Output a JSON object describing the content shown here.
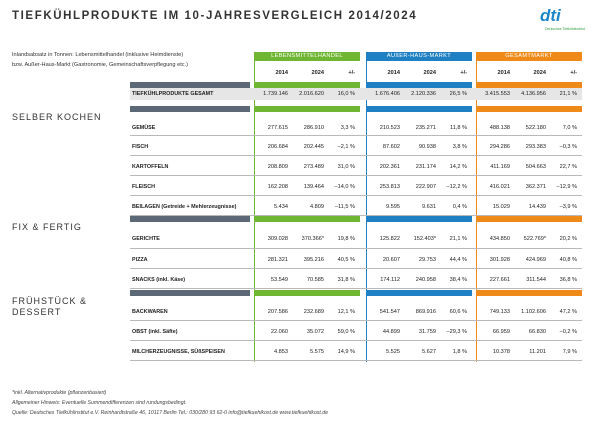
{
  "header": {
    "title": "TIEFKÜHLPRODUKTE IM 10-JAHRESVERGLEICH 2014/2024",
    "logo": "dti",
    "logo_sub": "Deutsches Tiefkühlinstitut"
  },
  "note": [
    "Inlandsabsatz in Tonnen: Lebensmittelhandel (inklusive Heimdienste)",
    "bzw. Außer-Haus-Markt (Gastronomie, Gemeinschaftsverpflegung etc.)"
  ],
  "groups": [
    "LEBENSMITTELHANDEL",
    "AUßER-HAUS-MARKT",
    "GESAMTMARKT"
  ],
  "columns": [
    "2014",
    "2024",
    "+/-"
  ],
  "total": {
    "label": "TIEFKÜHLPRODUKTE GESAMT",
    "values": [
      "1.739.146",
      "2.016.620",
      "16,0 %",
      "1.676.406",
      "2.120.336",
      "26,5 %",
      "3.415.553",
      "4.136.956",
      "21,1 %"
    ]
  },
  "sections": [
    {
      "name": "SELBER KOCHEN",
      "rows": [
        {
          "label": "GEMÜSE",
          "values": [
            "277.615",
            "286.910",
            "3,3 %",
            "210.523",
            "235.271",
            "11,8 %",
            "488.138",
            "522.180",
            "7,0 %"
          ]
        },
        {
          "label": "FISCH",
          "values": [
            "206.684",
            "202.445",
            "–2,1 %",
            "87.602",
            "90.938",
            "3,8 %",
            "294.286",
            "293.383",
            "–0,3 %"
          ]
        },
        {
          "label": "KARTOFFELN",
          "values": [
            "208.809",
            "273.489",
            "31,0 %",
            "202.361",
            "231.174",
            "14,2 %",
            "411.169",
            "504.663",
            "22,7 %"
          ]
        },
        {
          "label": "FLEISCH",
          "values": [
            "162.208",
            "139.464",
            "–14,0 %",
            "253.813",
            "222.907",
            "–12,2 %",
            "416.021",
            "362.371",
            "–12,9 %"
          ]
        },
        {
          "label": "BEILAGEN (Getreide + Mehlerzeugnisse)",
          "values": [
            "5.434",
            "4.809",
            "–11,5 %",
            "9.595",
            "9.631",
            "0,4 %",
            "15.029",
            "14.439",
            "–3,9 %"
          ]
        }
      ]
    },
    {
      "name": "FIX & FERTIG",
      "rows": [
        {
          "label": "GERICHTE",
          "values": [
            "309.028",
            "370.366*",
            "19,8 %",
            "125.822",
            "152.403*",
            "21,1 %",
            "434.850",
            "522.769*",
            "20,2 %"
          ]
        },
        {
          "label": "PIZZA",
          "values": [
            "281.321",
            "395.216",
            "40,5 %",
            "20.607",
            "29.753",
            "44,4 %",
            "301.928",
            "424.969",
            "40,8 %"
          ]
        },
        {
          "label": "SNACKS (inkl. Käse)",
          "values": [
            "53.549",
            "70.585",
            "31,8 %",
            "174.112",
            "240.958",
            "38,4 %",
            "227.661",
            "311.544",
            "36,8 %"
          ]
        }
      ]
    },
    {
      "name": "FRÜHSTÜCK & DESSERT",
      "rows": [
        {
          "label": "BACKWAREN",
          "values": [
            "207.586",
            "232.689",
            "12,1 %",
            "541.547",
            "869.916",
            "60,6 %",
            "749.133",
            "1.102.606",
            "47,2 %"
          ]
        },
        {
          "label": "OBST (inkl. Säfte)",
          "values": [
            "22.060",
            "35.072",
            "59,0 %",
            "44.899",
            "31.759",
            "–29,3 %",
            "66.959",
            "66.830",
            "–0,2 %"
          ]
        },
        {
          "label": "MILCHERZEUGNISSE, SÜßSPEISEN",
          "values": [
            "4.853",
            "5.575",
            "14,9 %",
            "5.525",
            "5.627",
            "1,8 %",
            "10.378",
            "11.201",
            "7,9 %"
          ]
        }
      ]
    }
  ],
  "footnotes": [
    "*inkl. Alternativprodukte (pflanzenbasiert)",
    "Allgemeiner Hinweis: Eventuelle Summendifferenzen sind rundungsbedingt.",
    "Quelle: Deutsches Tiefkühlinstitut e.V.    Reinhardtstraße 46, 10117 Berlin    Tel.: 030/280 93 62-0    info@tiefkuehlkost.de    www.tiefkuehlkost.de"
  ]
}
